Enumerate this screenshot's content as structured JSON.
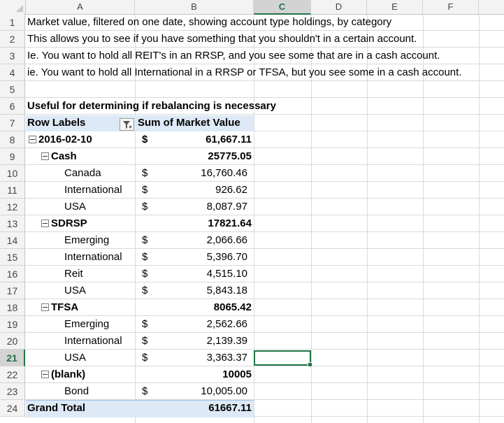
{
  "columns": [
    "A",
    "B",
    "C",
    "D",
    "E",
    "F"
  ],
  "active_column": "C",
  "rows": [
    "1",
    "2",
    "3",
    "4",
    "5",
    "6",
    "7",
    "8",
    "9",
    "10",
    "11",
    "12",
    "13",
    "14",
    "15",
    "16",
    "17",
    "18",
    "19",
    "20",
    "21",
    "22",
    "23",
    "24"
  ],
  "active_row": "21",
  "notes": [
    "Market value, filtered on one date, showing account type holdings, by category",
    "This allows you to see if you have something that you shouldn't in a certain account.",
    "Ie. You want to hold all REIT's in an RRSP, and you see some that are in a cash account.",
    "ie. You want to hold all International in a RRSP or TFSA, but you see some in a cash account."
  ],
  "pivot_caption": "Useful for determining if rebalancing is necessary",
  "pivot": {
    "row_labels_header": "Row Labels",
    "value_header": "Sum of Market Value",
    "date": {
      "label": "2016-02-10",
      "currency": "$",
      "value": "61,667.11"
    },
    "groups": [
      {
        "label": "Cash",
        "total": "25775.05",
        "items": [
          {
            "label": "Canada",
            "currency": "$",
            "value": "16,760.46"
          },
          {
            "label": "International",
            "currency": "$",
            "value": "926.62"
          },
          {
            "label": "USA",
            "currency": "$",
            "value": "8,087.97"
          }
        ]
      },
      {
        "label": "SDRSP",
        "total": "17821.64",
        "items": [
          {
            "label": "Emerging",
            "currency": "$",
            "value": "2,066.66"
          },
          {
            "label": "International",
            "currency": "$",
            "value": "5,396.70"
          },
          {
            "label": "Reit",
            "currency": "$",
            "value": "4,515.10"
          },
          {
            "label": "USA",
            "currency": "$",
            "value": "5,843.18"
          }
        ]
      },
      {
        "label": "TFSA",
        "total": "8065.42",
        "items": [
          {
            "label": "Emerging",
            "currency": "$",
            "value": "2,562.66"
          },
          {
            "label": "International",
            "currency": "$",
            "value": "2,139.39"
          },
          {
            "label": "USA",
            "currency": "$",
            "value": "3,363.37"
          }
        ]
      },
      {
        "label": "(blank)",
        "total": "10005",
        "items": [
          {
            "label": "Bond",
            "currency": "$",
            "value": "10,005.00"
          }
        ]
      }
    ],
    "grand_total_label": "Grand Total",
    "grand_total_value": "61667.11"
  },
  "colors": {
    "accent": "#217346",
    "pivot_header": "#dde9f6"
  }
}
